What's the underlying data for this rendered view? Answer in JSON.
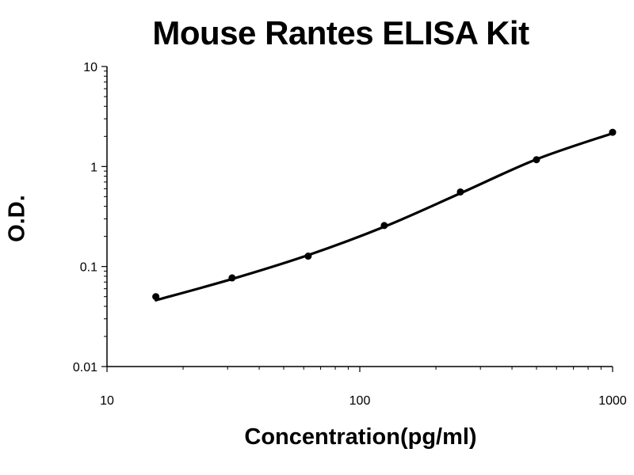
{
  "chart_data": {
    "type": "line",
    "title": "Mouse Rantes ELISA Kit",
    "xlabel": "Concentration(pg/ml)",
    "ylabel": "O.D.",
    "x_scale": "log",
    "y_scale": "log",
    "xlim": [
      10,
      1000
    ],
    "ylim": [
      0.01,
      10
    ],
    "x_ticks": [
      "10",
      "100",
      "1000"
    ],
    "y_ticks": [
      "0.01",
      "0.1",
      "1",
      "10"
    ],
    "grid": false,
    "legend": "none",
    "series": [
      {
        "points": [
          {
            "x": 15.6,
            "y": 0.05
          },
          {
            "x": 31.25,
            "y": 0.077
          },
          {
            "x": 62.5,
            "y": 0.127
          },
          {
            "x": 125,
            "y": 0.257
          },
          {
            "x": 250,
            "y": 0.557
          },
          {
            "x": 500,
            "y": 1.17
          },
          {
            "x": 1000,
            "y": 2.2
          }
        ],
        "fit_curve": [
          {
            "x": 15.6,
            "y": 0.046
          },
          {
            "x": 31.25,
            "y": 0.075
          },
          {
            "x": 62.5,
            "y": 0.13
          },
          {
            "x": 125,
            "y": 0.25
          },
          {
            "x": 250,
            "y": 0.54
          },
          {
            "x": 500,
            "y": 1.18
          },
          {
            "x": 1000,
            "y": 2.15
          }
        ]
      }
    ]
  }
}
